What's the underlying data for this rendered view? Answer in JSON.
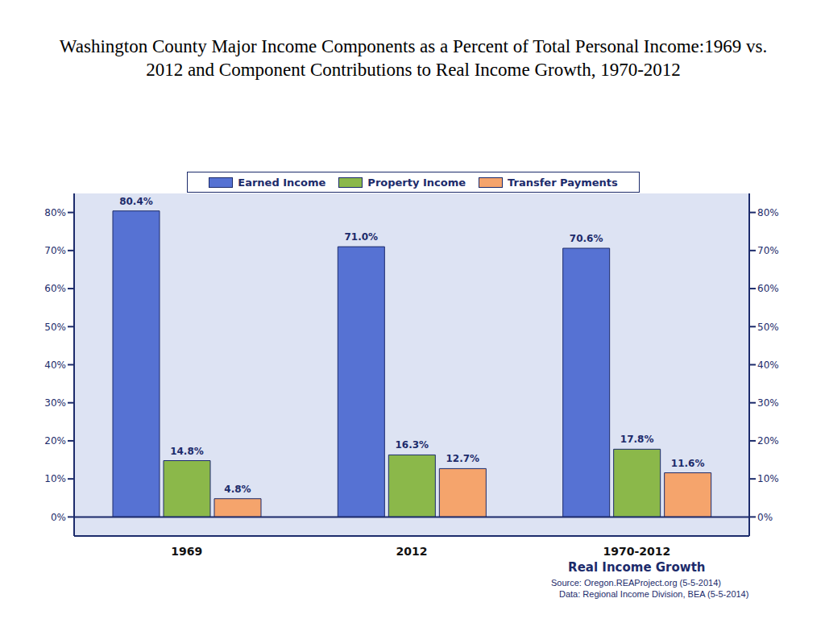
{
  "chart_data": {
    "type": "bar",
    "title": "Washington County Major Income Components as a Percent of Total Personal Income:1969 vs. 2012 and Component Contributions to Real Income Growth, 1970-2012",
    "categories": [
      "1969",
      "2012",
      "1970-2012"
    ],
    "series": [
      {
        "name": "Earned Income",
        "color": "#5672d3",
        "values": [
          80.4,
          71.0,
          70.6
        ],
        "value_labels": [
          "80.4%",
          "71.0%",
          "70.6%"
        ]
      },
      {
        "name": "Property Income",
        "color": "#8bb84a",
        "values": [
          14.8,
          16.3,
          17.8
        ],
        "value_labels": [
          "14.8%",
          "16.3%",
          "17.8%"
        ]
      },
      {
        "name": "Transfer Payments",
        "color": "#f5a46c",
        "values": [
          4.8,
          12.7,
          11.6
        ],
        "value_labels": [
          "4.8%",
          "12.7%",
          "11.6%"
        ]
      }
    ],
    "ylim": [
      -5,
      85
    ],
    "yticks": [
      {
        "value": 0,
        "label": "0%"
      },
      {
        "value": 10,
        "label": "10%"
      },
      {
        "value": 20,
        "label": "20%"
      },
      {
        "value": 30,
        "label": "30%"
      },
      {
        "value": 40,
        "label": "40%"
      },
      {
        "value": 50,
        "label": "50%"
      },
      {
        "value": 60,
        "label": "60%"
      },
      {
        "value": 70,
        "label": "70%"
      },
      {
        "value": 80,
        "label": "80%"
      }
    ],
    "grid": false,
    "legend": "top",
    "data_labels": true,
    "annotations": [
      {
        "text": "Real Income Growth",
        "category": "1970-2012"
      }
    ],
    "source": [
      "Source: Oregon.REAProject.org (5-5-2014)",
      "Data: Regional Income Division, BEA (5-5-2014)"
    ]
  }
}
